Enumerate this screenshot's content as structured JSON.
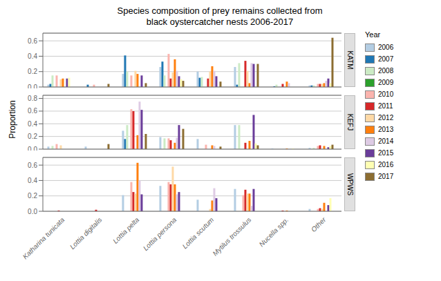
{
  "chart_data": [
    {
      "type": "bar",
      "title": "Species composition of prey remains collected from\nblack oystercatcher nests 2006-2017",
      "subtitle": "KATM",
      "legend": "right",
      "legend_title": "Year",
      "grid": true,
      "tick_labels": "y",
      "categories": [
        "Katharina tunicata",
        "Lottia digitalis",
        "Lottia pelta",
        "Lottia persona",
        "Lottia scutum",
        "Mytilus trossulus",
        "Nucella spp.",
        "Other"
      ],
      "ylim": [
        0,
        0.7
      ],
      "yticks": [
        {
          "value": 0,
          "label": "0.0"
        },
        0.2,
        0.4,
        0.6
      ],
      "series": [
        {
          "name": "2006",
          "color": "#b3cde3",
          "values": [
            0.03,
            0.0,
            0.17,
            0.26,
            0.2,
            0.26,
            0.0,
            0.02
          ]
        },
        {
          "name": "2007",
          "color": "#1f77b4",
          "values": [
            0.04,
            0.03,
            0.41,
            0.33,
            0.12,
            0.03,
            0.01,
            0.02
          ]
        },
        {
          "name": "2008",
          "color": "#ccebc5",
          "values": [
            0.15,
            0.0,
            0.2,
            0.15,
            0.13,
            0.31,
            0.03,
            0.02
          ]
        },
        {
          "name": "2009",
          "color": "#2ca02c",
          "values": [
            0.0,
            0.0,
            0.0,
            0.0,
            0.0,
            0.0,
            0.0,
            0.0
          ]
        },
        {
          "name": "2010",
          "color": "#fbb4ae",
          "values": [
            0.15,
            0.03,
            0.15,
            0.43,
            0.0,
            0.0,
            0.0,
            0.04
          ]
        },
        {
          "name": "2011",
          "color": "#d62728",
          "values": [
            0.0,
            0.0,
            0.0,
            0.11,
            0.11,
            0.34,
            0.04,
            0.04
          ]
        },
        {
          "name": "2012",
          "color": "#fed9a6",
          "values": [
            0.1,
            0.0,
            0.21,
            0.19,
            0.2,
            0.21,
            0.0,
            0.04
          ]
        },
        {
          "name": "2013",
          "color": "#ff7f0e",
          "values": [
            0.11,
            0.0,
            0.17,
            0.36,
            0.27,
            0.05,
            0.07,
            0.05
          ]
        },
        {
          "name": "2014",
          "color": "#decbe4",
          "values": [
            0.0,
            0.0,
            0.0,
            0.21,
            0.21,
            0.31,
            0.05,
            0.08
          ]
        },
        {
          "name": "2015",
          "color": "#6a3d9a",
          "values": [
            0.11,
            0.0,
            0.15,
            0.14,
            0.14,
            0.3,
            0.0,
            0.11
          ]
        },
        {
          "name": "2016",
          "color": "#ffffb3",
          "values": [
            0.12,
            0.0,
            0.0,
            0.1,
            0.0,
            0.0,
            0.0,
            0.05
          ]
        },
        {
          "name": "2017",
          "color": "#8c6d31",
          "values": [
            0.0,
            0.04,
            0.05,
            0.08,
            0.07,
            0.3,
            0.0,
            0.64
          ]
        }
      ]
    },
    {
      "type": "bar",
      "subtitle": "KEFJ",
      "ylabel": "Proportion",
      "grid": true,
      "tick_labels": "y",
      "categories": [
        "Katharina tunicata",
        "Lottia digitalis",
        "Lottia pelta",
        "Lottia persona",
        "Lottia scutum",
        "Mytilus trossulus",
        "Nucella spp.",
        "Other"
      ],
      "ylim": [
        0,
        0.85
      ],
      "yticks": [
        {
          "value": 0,
          "label": "0.0"
        },
        0.2,
        0.4,
        0.6,
        0.8
      ],
      "series": [
        {
          "name": "2006",
          "color": "#b3cde3",
          "values": [
            0.04,
            0.04,
            0.29,
            0.19,
            0.16,
            0.38,
            0.01,
            0.02
          ]
        },
        {
          "name": "2007",
          "color": "#1f77b4",
          "values": [
            0.0,
            0.0,
            0.16,
            0.0,
            0.0,
            0.0,
            0.0,
            0.0
          ]
        },
        {
          "name": "2008",
          "color": "#ccebc5",
          "values": [
            0.05,
            0.0,
            0.38,
            0.17,
            0.0,
            0.38,
            0.0,
            0.02
          ]
        },
        {
          "name": "2009",
          "color": "#2ca02c",
          "values": [
            0.0,
            0.0,
            0.0,
            0.0,
            0.0,
            0.0,
            0.0,
            0.0
          ]
        },
        {
          "name": "2010",
          "color": "#fbb4ae",
          "values": [
            0.08,
            0.0,
            0.63,
            0.17,
            0.07,
            0.0,
            0.0,
            0.05
          ]
        },
        {
          "name": "2011",
          "color": "#d62728",
          "values": [
            0.0,
            0.0,
            0.6,
            0.14,
            0.0,
            0.1,
            0.0,
            0.06
          ]
        },
        {
          "name": "2012",
          "color": "#fed9a6",
          "values": [
            0.06,
            0.0,
            0.0,
            0.0,
            0.0,
            0.0,
            0.0,
            0.0
          ]
        },
        {
          "name": "2013",
          "color": "#ff7f0e",
          "values": [
            0.0,
            0.0,
            0.22,
            0.1,
            0.06,
            0.13,
            0.01,
            0.05
          ]
        },
        {
          "name": "2014",
          "color": "#decbe4",
          "values": [
            0.0,
            0.0,
            0.75,
            0.18,
            0.05,
            0.0,
            0.0,
            0.0
          ]
        },
        {
          "name": "2015",
          "color": "#6a3d9a",
          "values": [
            0.0,
            0.0,
            0.62,
            0.38,
            0.0,
            0.54,
            0.0,
            0.03
          ]
        },
        {
          "name": "2016",
          "color": "#ffffb3",
          "values": [
            0.0,
            0.0,
            0.0,
            0.0,
            0.0,
            0.09,
            0.01,
            0.05
          ]
        },
        {
          "name": "2017",
          "color": "#8c6d31",
          "values": [
            0.0,
            0.08,
            0.24,
            0.32,
            0.04,
            0.06,
            0.0,
            0.07
          ]
        }
      ]
    },
    {
      "type": "bar",
      "subtitle": "WPWS",
      "grid": true,
      "categories": [
        "Katharina tunicata",
        "Lottia digitalis",
        "Lottia pelta",
        "Lottia persona",
        "Lottia scutum",
        "Mytilus trossulus",
        "Nucella spp.",
        "Other"
      ],
      "ylim": [
        0,
        0.7
      ],
      "yticks": [
        {
          "value": 0,
          "label": "0.0"
        },
        0.2,
        0.4,
        0.6
      ],
      "series": [
        {
          "name": "2006",
          "color": "#b3cde3",
          "values": [
            0.0,
            0.0,
            0.21,
            0.33,
            0.15,
            0.29,
            0.0,
            0.03
          ]
        },
        {
          "name": "2007",
          "color": "#1f77b4",
          "values": [
            0.0,
            0.0,
            0.0,
            0.0,
            0.0,
            0.0,
            0.0,
            0.0
          ]
        },
        {
          "name": "2008",
          "color": "#ccebc5",
          "values": [
            0.0,
            0.0,
            0.0,
            0.0,
            0.0,
            0.0,
            0.0,
            0.0
          ]
        },
        {
          "name": "2009",
          "color": "#2ca02c",
          "values": [
            0.0,
            0.0,
            0.0,
            0.0,
            0.0,
            0.0,
            0.0,
            0.0
          ]
        },
        {
          "name": "2010",
          "color": "#fbb4ae",
          "values": [
            0.0,
            0.0,
            0.38,
            0.38,
            0.0,
            0.21,
            0.0,
            0.03
          ]
        },
        {
          "name": "2011",
          "color": "#d62728",
          "values": [
            0.01,
            0.02,
            0.25,
            0.35,
            0.0,
            0.28,
            0.01,
            0.04
          ]
        },
        {
          "name": "2012",
          "color": "#fed9a6",
          "values": [
            0.0,
            0.0,
            0.23,
            0.58,
            0.03,
            0.23,
            0.0,
            0.03
          ]
        },
        {
          "name": "2013",
          "color": "#ff7f0e",
          "values": [
            0.0,
            0.0,
            0.63,
            0.35,
            0.14,
            0.23,
            0.01,
            0.11
          ]
        },
        {
          "name": "2014",
          "color": "#decbe4",
          "values": [
            0.0,
            0.0,
            0.4,
            0.22,
            0.3,
            0.07,
            0.0,
            0.0
          ]
        },
        {
          "name": "2015",
          "color": "#6a3d9a",
          "values": [
            0.0,
            0.0,
            0.22,
            0.25,
            0.17,
            0.29,
            0.0,
            0.08
          ]
        },
        {
          "name": "2016",
          "color": "#ffffb3",
          "values": [
            0.0,
            0.0,
            0.0,
            0.0,
            0.0,
            0.0,
            0.0,
            0.17
          ]
        },
        {
          "name": "2017",
          "color": "#8c6d31",
          "values": [
            0.0,
            0.0,
            0.0,
            0.0,
            0.0,
            0.0,
            0.0,
            0.0
          ]
        }
      ]
    }
  ]
}
